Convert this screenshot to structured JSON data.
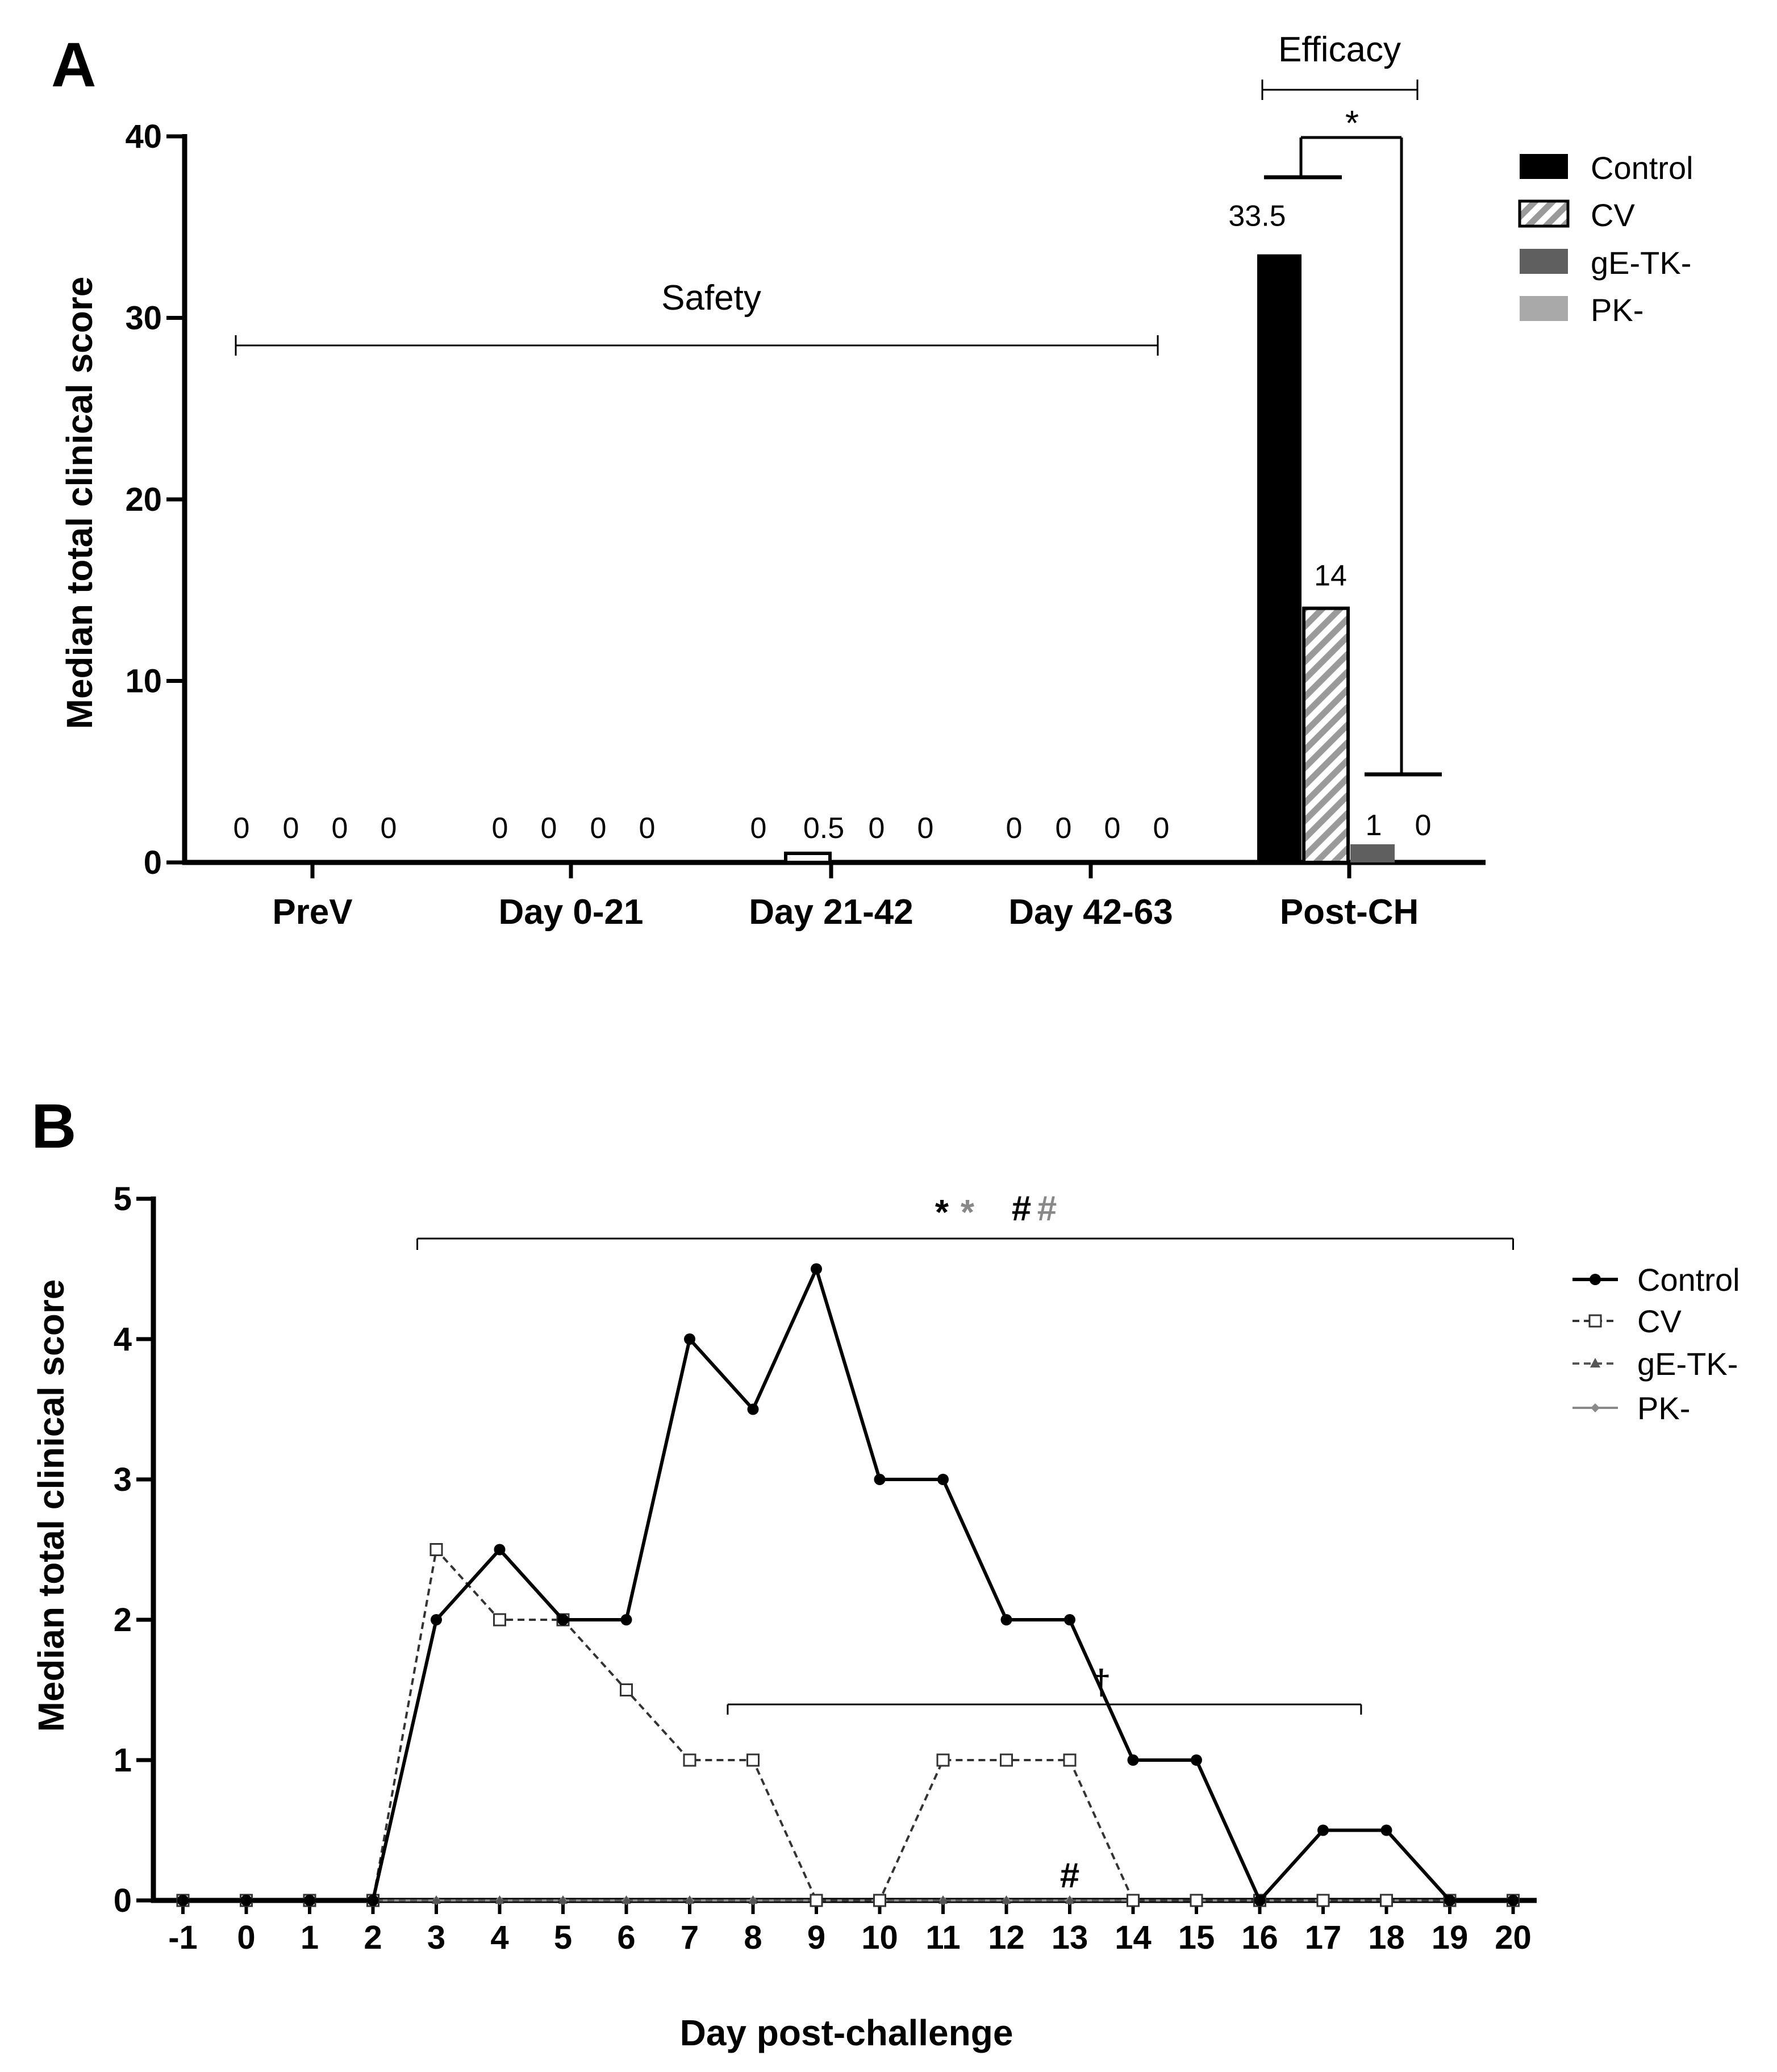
{
  "chart_data": [
    {
      "panel": "A",
      "type": "bar",
      "ylabel": "Median total clinical score",
      "ylim": [
        0,
        40
      ],
      "yticks": [
        0,
        10,
        20,
        30,
        40
      ],
      "categories": [
        "PreV",
        "Day 0-21",
        "Day 21-42",
        "Day 42-63",
        "Post-CH"
      ],
      "series": [
        {
          "name": "Control",
          "color": "#000000",
          "fill": "solid",
          "values": [
            0,
            0,
            0,
            0,
            33.5
          ],
          "labels": [
            "0",
            "0",
            "0",
            "0",
            "33.5"
          ]
        },
        {
          "name": "CV",
          "color": "#ffffff",
          "fill": "hatch",
          "values": [
            0,
            0,
            0.5,
            0,
            14
          ],
          "labels": [
            "0",
            "0",
            "0.5",
            "0",
            "14"
          ]
        },
        {
          "name": "gE-TK-",
          "color": "#5f5f5f",
          "fill": "solid",
          "values": [
            0,
            0,
            0,
            0,
            1
          ],
          "labels": [
            "0",
            "0",
            "0",
            "0",
            "1"
          ]
        },
        {
          "name": "PK-",
          "color": "#a9a9a9",
          "fill": "solid",
          "values": [
            0,
            0,
            0,
            0,
            0
          ],
          "labels": [
            "0",
            "0",
            "0",
            "0",
            "0"
          ]
        }
      ],
      "annotations": {
        "safety": "Safety",
        "efficacy": "Efficacy",
        "significance": "*"
      }
    },
    {
      "panel": "B",
      "type": "line",
      "xlabel": "Day post-challenge",
      "ylabel": "Median total clinical score",
      "ylim": [
        0,
        5
      ],
      "yticks": [
        0,
        1,
        2,
        3,
        4,
        5
      ],
      "x": [
        -1,
        0,
        1,
        2,
        3,
        4,
        5,
        6,
        7,
        8,
        9,
        10,
        11,
        12,
        13,
        14,
        15,
        16,
        17,
        18,
        19,
        20
      ],
      "series": [
        {
          "name": "Control",
          "marker": "circle",
          "style": "solid",
          "color": "#000000",
          "values": [
            0,
            0,
            0,
            0,
            2,
            2.5,
            2,
            2,
            4,
            3.5,
            4.5,
            3,
            3,
            2,
            2,
            1,
            1,
            0,
            0.5,
            0.5,
            0,
            0
          ]
        },
        {
          "name": "CV",
          "marker": "open-square",
          "style": "dashed",
          "color": "#333333",
          "values": [
            0,
            0,
            0,
            0,
            2.5,
            2,
            2,
            1.5,
            1,
            1,
            0,
            0,
            1,
            1,
            1,
            0,
            0,
            0,
            0,
            0,
            0,
            0
          ]
        },
        {
          "name": "gE-TK-",
          "marker": "triangle",
          "style": "dashed",
          "color": "#555555",
          "values": [
            0,
            0,
            0,
            0,
            0,
            0,
            0,
            0,
            0,
            0,
            0,
            0,
            0,
            0,
            0,
            0,
            0,
            0,
            0,
            0,
            0,
            0
          ]
        },
        {
          "name": "PK-",
          "marker": "diamond",
          "style": "solid",
          "color": "#8a8a8a",
          "values": [
            0,
            0,
            0,
            0,
            0,
            0,
            0,
            0,
            0,
            0,
            0,
            0,
            0,
            0,
            0,
            0,
            0,
            0,
            0,
            0,
            0,
            0
          ]
        }
      ],
      "annotations": {
        "top_star_1": "*",
        "top_star_2": "*",
        "top_hash_1": "#",
        "top_hash_2": "#",
        "top_range": [
          2.7,
          20
        ],
        "dagger": "†",
        "dagger_range": [
          7.6,
          17.6
        ],
        "bottom_hash": "#",
        "bottom_hash_x": 13
      }
    }
  ],
  "panels": {
    "a_letter": "A",
    "b_letter": "B"
  }
}
